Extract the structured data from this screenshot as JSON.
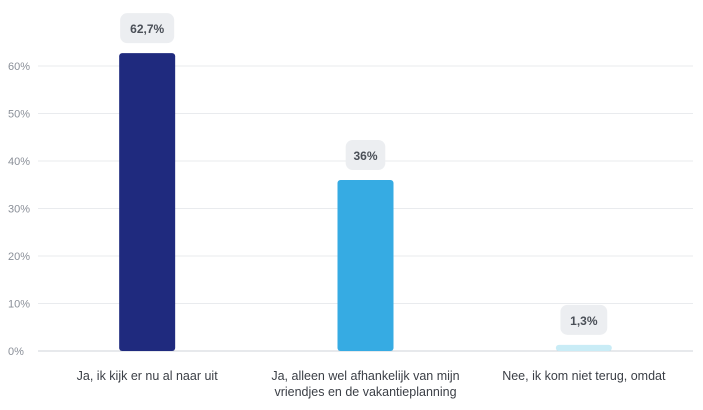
{
  "chart_data": {
    "type": "bar",
    "categories": [
      [
        "Ja, ik kijk er nu al naar uit"
      ],
      [
        "Ja, alleen wel afhankelijk van mijn",
        "vriendjes en de vakantieplanning"
      ],
      [
        "Nee, ik kom niet terug, omdat"
      ]
    ],
    "values": [
      62.7,
      36,
      1.3
    ],
    "data_labels": [
      "62,7%",
      "36%",
      "1,3%"
    ],
    "colors": [
      "#1f2a7e",
      "#36abe3",
      "#c9ecf6"
    ],
    "y_ticks": [
      "0%",
      "10%",
      "20%",
      "30%",
      "40%",
      "50%",
      "60%"
    ],
    "ylim": [
      0,
      60
    ],
    "grid": true,
    "title": "",
    "xlabel": "",
    "ylabel": ""
  }
}
